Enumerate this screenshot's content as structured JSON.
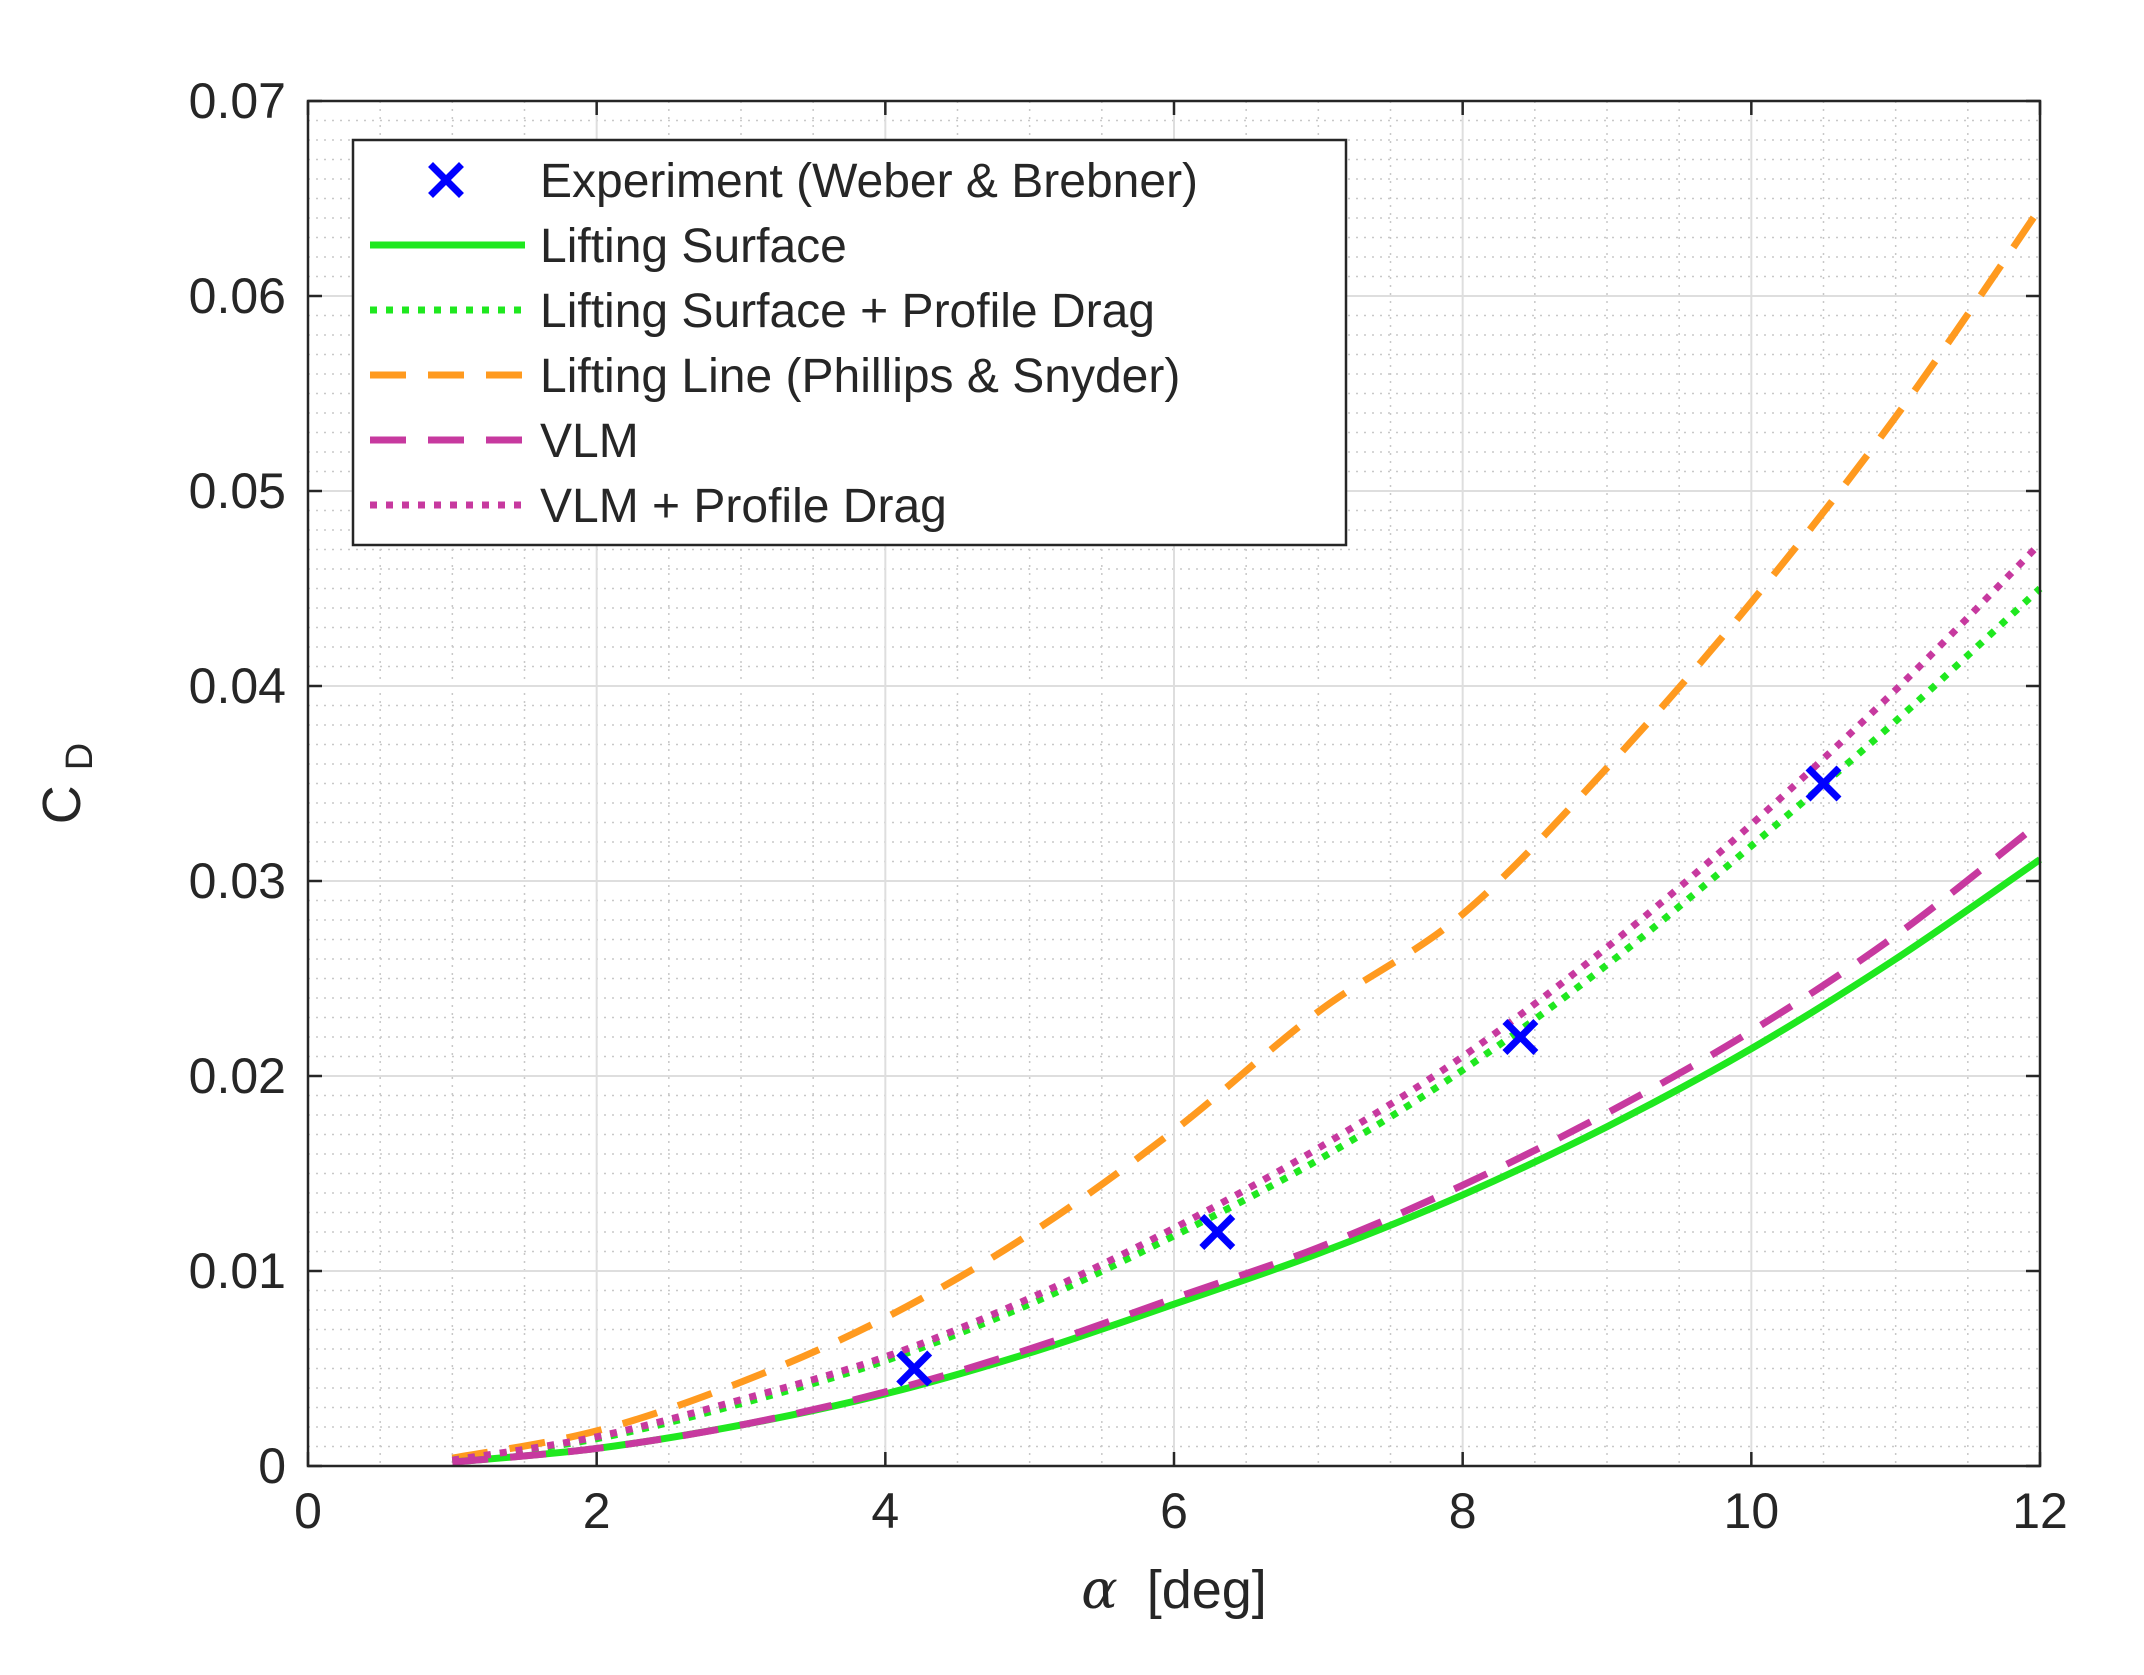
{
  "chart_data": {
    "type": "line",
    "title": "",
    "xlabel": "[deg]",
    "xlabel_symbol": "α",
    "ylabel": "C",
    "ylabel_sub": "D",
    "xlim": [
      0,
      12
    ],
    "ylim": [
      0,
      0.07
    ],
    "grid": true,
    "minor_grid": true,
    "legend_position": "top-left",
    "x_ticks": [
      0,
      2,
      4,
      6,
      8,
      10,
      12
    ],
    "y_ticks": [
      0,
      0.01,
      0.02,
      0.03,
      0.04,
      0.05,
      0.06,
      0.07
    ],
    "x_tick_labels": [
      "0",
      "2",
      "4",
      "6",
      "8",
      "10",
      "12"
    ],
    "y_tick_labels": [
      "0",
      "0.01",
      "0.02",
      "0.03",
      "0.04",
      "0.05",
      "0.06",
      "0.07"
    ],
    "series": [
      {
        "name": "Experiment (Weber & Brebner)",
        "style": "marker-x",
        "color": "#0000ff",
        "x": [
          4.2,
          6.3,
          8.4,
          10.5
        ],
        "y": [
          0.005,
          0.012,
          0.022,
          0.035
        ]
      },
      {
        "name": "Lifting Surface",
        "style": "solid",
        "color": "#1fe81f",
        "x": [
          1,
          2,
          3,
          4,
          5,
          6,
          7,
          8,
          9,
          10,
          11,
          12
        ],
        "y": [
          0.0002,
          0.0009,
          0.0021,
          0.0037,
          0.0058,
          0.0083,
          0.0109,
          0.0139,
          0.0174,
          0.0214,
          0.026,
          0.0311
        ]
      },
      {
        "name": "Lifting Surface + Profile Drag",
        "style": "dotted",
        "color": "#1fe81f",
        "x": [
          1,
          2,
          3,
          4,
          5,
          6,
          7,
          8,
          9,
          10,
          11,
          12
        ],
        "y": [
          0.0003,
          0.0014,
          0.0032,
          0.0054,
          0.0083,
          0.0118,
          0.0157,
          0.0203,
          0.0257,
          0.0318,
          0.0382,
          0.045
        ]
      },
      {
        "name": "Lifting Line (Phillips & Snyder)",
        "style": "dashed",
        "color": "#ff9a1f",
        "x": [
          1,
          2,
          3,
          4,
          5,
          6,
          7,
          8,
          9,
          10,
          11,
          12
        ],
        "y": [
          0.0004,
          0.0018,
          0.0043,
          0.0076,
          0.0119,
          0.0172,
          0.0233,
          0.0283,
          0.0358,
          0.0443,
          0.0538,
          0.0645
        ]
      },
      {
        "name": "VLM",
        "style": "dashed",
        "color": "#c7399f",
        "x": [
          1,
          2,
          3,
          4,
          5,
          6,
          7,
          8,
          9,
          10,
          11,
          12
        ],
        "y": [
          0.0002,
          0.0009,
          0.0021,
          0.0038,
          0.006,
          0.0086,
          0.0112,
          0.0144,
          0.0181,
          0.0223,
          0.0272,
          0.033
        ]
      },
      {
        "name": "VLM + Profile Drag",
        "style": "dotted",
        "color": "#c7399f",
        "x": [
          1,
          2,
          3,
          4,
          5,
          6,
          7,
          8,
          9,
          10,
          11,
          12
        ],
        "y": [
          0.0003,
          0.0015,
          0.0034,
          0.0056,
          0.0086,
          0.0122,
          0.0163,
          0.021,
          0.0266,
          0.0329,
          0.0398,
          0.0473
        ]
      }
    ]
  }
}
